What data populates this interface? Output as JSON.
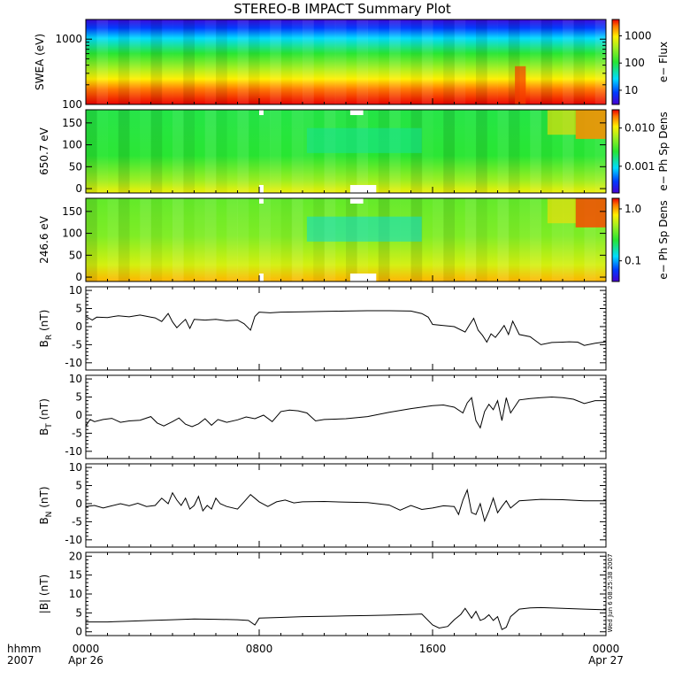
{
  "chart_data": {
    "title": "STEREO-B IMPACT Summary Plot",
    "type": "line",
    "colors": {
      "line": "#000000",
      "axes": "#000000",
      "background": "#ffffff",
      "gap": "#ffffff"
    },
    "x_axis": {
      "unit_labels": [
        "hhmm",
        "2007"
      ],
      "range_hours": [
        0,
        24
      ],
      "ticks": [
        {
          "hour": 0,
          "labels": [
            "0000",
            "Apr 26"
          ]
        },
        {
          "hour": 8,
          "labels": [
            "0800",
            ""
          ]
        },
        {
          "hour": 16,
          "labels": [
            "1600",
            ""
          ]
        },
        {
          "hour": 24,
          "labels": [
            "0000",
            "Apr 27"
          ]
        }
      ],
      "minor_tick_step_hours": 1
    },
    "spectrograms": [
      {
        "id": "swea",
        "ylabel": "SWEA (eV)",
        "yscale": "log",
        "ylim": [
          100,
          2000
        ],
        "yticks": [
          {
            "value": 100,
            "label": "100"
          },
          {
            "value": 1000,
            "label": "1000"
          }
        ],
        "colorbar": {
          "label": "e− Flux",
          "scale": "log",
          "range": [
            3,
            4000
          ],
          "ticks": [
            {
              "value": 10,
              "label": "10"
            },
            {
              "value": 100,
              "label": "100"
            },
            {
              "value": 1000,
              "label": "1000"
            }
          ]
        }
      },
      {
        "id": "pad650",
        "ylabel": "650.7 eV",
        "yscale": "linear",
        "ylim": [
          -10,
          180
        ],
        "yticks": [
          {
            "value": 0,
            "label": "0"
          },
          {
            "value": 50,
            "label": "50"
          },
          {
            "value": 100,
            "label": "100"
          },
          {
            "value": 150,
            "label": "150"
          }
        ],
        "colorbar": {
          "label": "e− Ph Sp Dens",
          "scale": "log",
          "range": [
            0.0002,
            0.03
          ],
          "ticks": [
            {
              "value": 0.001,
              "label": "0.001"
            },
            {
              "value": 0.01,
              "label": "0.010"
            }
          ]
        }
      },
      {
        "id": "pad246",
        "ylabel": "246.6 eV",
        "yscale": "linear",
        "ylim": [
          -10,
          180
        ],
        "yticks": [
          {
            "value": 0,
            "label": "0"
          },
          {
            "value": 50,
            "label": "50"
          },
          {
            "value": 100,
            "label": "100"
          },
          {
            "value": 150,
            "label": "150"
          }
        ],
        "colorbar": {
          "label": "e− Ph Sp Dens",
          "scale": "log",
          "range": [
            0.04,
            1.6
          ],
          "ticks": [
            {
              "value": 0.1,
              "label": "0.1"
            },
            {
              "value": 1.0,
              "label": "1.0"
            }
          ]
        }
      }
    ],
    "line_panels": [
      {
        "id": "br",
        "ylabel": "B",
        "ysub": "R",
        "yunit": " (nT)",
        "ylim": [
          -12,
          11
        ],
        "yticks": [
          -10,
          -5,
          0,
          5,
          10
        ],
        "series": {
          "x": [
            0,
            0.3,
            0.5,
            1,
            1.5,
            2,
            2.5,
            3,
            3.2,
            3.5,
            3.8,
            4,
            4.2,
            4.4,
            4.6,
            4.8,
            5,
            5.5,
            6,
            6.5,
            7,
            7.3,
            7.6,
            7.8,
            8,
            8.5,
            9,
            10,
            11,
            12,
            13,
            14,
            15,
            15.5,
            15.8,
            16,
            16.5,
            17,
            17.5,
            17.7,
            17.9,
            18.1,
            18.3,
            18.5,
            18.7,
            18.9,
            19.1,
            19.3,
            19.5,
            19.7,
            20,
            20.5,
            21,
            21.5,
            22,
            22.3,
            22.7,
            23,
            23.5,
            24
          ],
          "y": [
            2.8,
            1.8,
            2.6,
            2.5,
            3,
            2.7,
            3.2,
            2.6,
            2.4,
            1.4,
            3.6,
            1.3,
            -0.3,
            0.9,
            2.0,
            -0.5,
            2.0,
            1.8,
            2.0,
            1.6,
            1.8,
            0.8,
            -1.0,
            2.8,
            4.0,
            3.8,
            4.0,
            4.1,
            4.2,
            4.3,
            4.4,
            4.4,
            4.3,
            3.6,
            2.6,
            0.6,
            0.3,
            0.0,
            -1.5,
            0.4,
            2.3,
            -1.0,
            -2.4,
            -4.3,
            -2.0,
            -3.0,
            -1.4,
            0.3,
            -2.2,
            1.5,
            -2.2,
            -2.8,
            -5.0,
            -4.4,
            -4.3,
            -4.2,
            -4.3,
            -5.2,
            -4.6,
            -4.2
          ]
        }
      },
      {
        "id": "bt",
        "ylabel": "B",
        "ysub": "T",
        "yunit": " (nT)",
        "ylim": [
          -12,
          11
        ],
        "yticks": [
          -10,
          -5,
          0,
          5,
          10
        ],
        "series": {
          "x": [
            0,
            0.2,
            0.4,
            0.8,
            1.2,
            1.6,
            2,
            2.5,
            3,
            3.3,
            3.6,
            4,
            4.3,
            4.6,
            4.9,
            5.2,
            5.5,
            5.8,
            6.1,
            6.5,
            7,
            7.4,
            7.8,
            8.2,
            8.6,
            9,
            9.4,
            9.8,
            10.2,
            10.6,
            11,
            12,
            13,
            14,
            15,
            16,
            16.5,
            17,
            17.4,
            17.6,
            17.8,
            18,
            18.2,
            18.4,
            18.6,
            18.8,
            19,
            19.2,
            19.4,
            19.6,
            20,
            20.5,
            21,
            21.5,
            22,
            22.5,
            23,
            23.5,
            24
          ],
          "y": [
            -3.0,
            -1.2,
            -1.8,
            -1.2,
            -0.9,
            -2.0,
            -1.6,
            -1.4,
            -0.4,
            -2.2,
            -3.0,
            -1.8,
            -0.8,
            -2.5,
            -3.2,
            -2.4,
            -1.0,
            -2.8,
            -1.2,
            -2.0,
            -1.3,
            -0.5,
            -1.0,
            0.0,
            -1.8,
            1.0,
            1.4,
            1.2,
            0.6,
            -1.6,
            -1.2,
            -1.0,
            -0.4,
            0.8,
            1.8,
            2.6,
            2.8,
            2.2,
            0.6,
            3.4,
            4.8,
            -1.5,
            -3.5,
            1.0,
            3.0,
            1.5,
            4.0,
            -1.5,
            4.8,
            0.6,
            4.2,
            4.6,
            4.8,
            5.0,
            4.8,
            4.4,
            3.2,
            4.0,
            4.0
          ]
        }
      },
      {
        "id": "bn",
        "ylabel": "B",
        "ysub": "N",
        "yunit": " (nT)",
        "ylim": [
          -12,
          11
        ],
        "yticks": [
          -10,
          -5,
          0,
          5,
          10
        ],
        "series": {
          "x": [
            0,
            0.4,
            0.8,
            1.2,
            1.6,
            2,
            2.4,
            2.8,
            3.2,
            3.5,
            3.8,
            4,
            4.2,
            4.4,
            4.6,
            4.8,
            5,
            5.2,
            5.4,
            5.6,
            5.8,
            6,
            6.2,
            6.5,
            7,
            7.3,
            7.6,
            8,
            8.4,
            8.8,
            9.2,
            9.6,
            10,
            11,
            12,
            13,
            14,
            14.5,
            15,
            15.5,
            16,
            16.5,
            17,
            17.2,
            17.4,
            17.6,
            17.8,
            18,
            18.2,
            18.4,
            18.6,
            18.8,
            19,
            19.2,
            19.4,
            19.6,
            20,
            21,
            22,
            23,
            24
          ],
          "y": [
            -0.8,
            -0.5,
            -1.2,
            -0.6,
            0.0,
            -0.6,
            0.1,
            -0.8,
            -0.5,
            1.5,
            0.0,
            3.0,
            1.0,
            -0.5,
            1.5,
            -1.5,
            -0.5,
            2.0,
            -2.0,
            -0.5,
            -1.5,
            1.5,
            0.0,
            -0.8,
            -1.5,
            0.5,
            2.5,
            0.5,
            -0.8,
            0.5,
            1.0,
            0.2,
            0.5,
            0.6,
            0.4,
            0.3,
            -0.4,
            -1.8,
            -0.5,
            -1.6,
            -1.2,
            -0.6,
            -0.8,
            -3.0,
            1.0,
            3.8,
            -2.5,
            -3.0,
            0.0,
            -4.8,
            -2.0,
            1.5,
            -2.5,
            -0.8,
            0.8,
            -1.2,
            0.8,
            1.2,
            1.1,
            0.8,
            0.8
          ]
        }
      },
      {
        "id": "bmag",
        "ylabel": "|B|",
        "ysub": "",
        "yunit": " (nT)",
        "ylim": [
          -1,
          21
        ],
        "yticks": [
          0,
          5,
          10,
          15,
          20
        ],
        "series": {
          "x": [
            0,
            1,
            2,
            3,
            4,
            5,
            6,
            7,
            7.5,
            7.8,
            8,
            9,
            10,
            11,
            12,
            13,
            14,
            15,
            15.5,
            16,
            16.3,
            16.7,
            17,
            17.3,
            17.5,
            17.8,
            18,
            18.2,
            18.4,
            18.6,
            18.8,
            19,
            19.2,
            19.4,
            19.6,
            20,
            20.5,
            21,
            22,
            23,
            24
          ],
          "y": [
            2.6,
            2.6,
            2.8,
            3.0,
            3.2,
            3.4,
            3.3,
            3.2,
            3.0,
            1.8,
            3.6,
            3.8,
            4.0,
            4.1,
            4.2,
            4.3,
            4.4,
            4.6,
            4.7,
            1.8,
            1.0,
            1.4,
            3.2,
            4.6,
            6.2,
            3.6,
            5.4,
            3.0,
            3.5,
            4.5,
            3.0,
            4.0,
            0.6,
            1.2,
            4.0,
            6.0,
            6.3,
            6.4,
            6.2,
            6.0,
            5.8
          ]
        }
      }
    ],
    "side_stamp": "Wed Jun  6 08:25:38 2007"
  }
}
